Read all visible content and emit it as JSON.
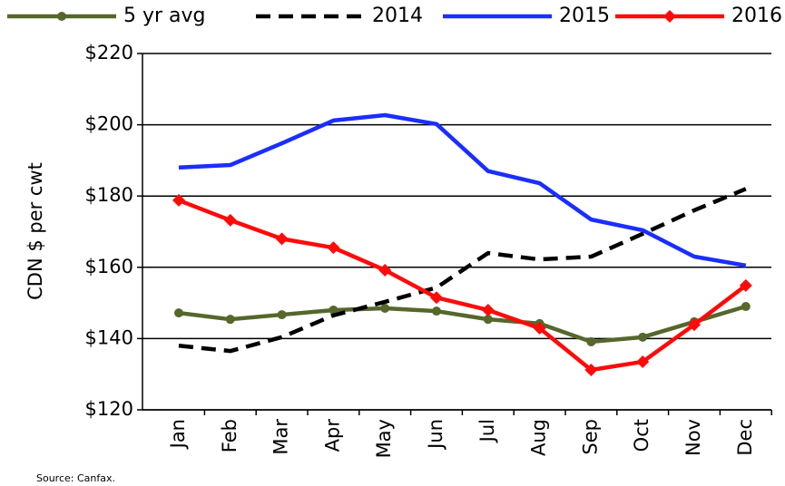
{
  "chart_data": {
    "type": "line",
    "y_label": "CDN $ per cwt",
    "source": "Source: Canfax.",
    "categories": [
      "Jan",
      "Feb",
      "Mar",
      "Apr",
      "May",
      "Jun",
      "Jul",
      "Aug",
      "Sep",
      "Oct",
      "Nov",
      "Dec"
    ],
    "series": [
      {
        "name": "5 yr avg",
        "color": "#55672b",
        "marker": "circle",
        "dash": false,
        "values": [
          147.2,
          145.4,
          146.7,
          148,
          148.5,
          147.7,
          145.4,
          144.2,
          139.1,
          140.4,
          144.7,
          149
        ]
      },
      {
        "name": "2014",
        "color": "#000000",
        "marker": "none",
        "dash": true,
        "values": [
          138,
          136.5,
          140.4,
          146.5,
          150.3,
          154.3,
          164,
          162.2,
          163,
          169.4,
          176,
          182
        ]
      },
      {
        "name": "2015",
        "color": "#1a2eff",
        "marker": "none",
        "dash": false,
        "values": [
          188,
          188.7,
          194.8,
          201.2,
          202.7,
          200.2,
          187,
          183.6,
          173.4,
          170.4,
          163,
          160.5
        ]
      },
      {
        "name": "2016",
        "color": "#ff0a0a",
        "marker": "diamond",
        "dash": false,
        "values": [
          178.8,
          173.2,
          168,
          165.5,
          159.2,
          151.5,
          148,
          142.9,
          131.2,
          133.5,
          143.9,
          154.9
        ]
      }
    ],
    "ylim": [
      120,
      220
    ],
    "yticks": [
      {
        "value": 120,
        "label": "$120"
      },
      {
        "value": 140,
        "label": "$140"
      },
      {
        "value": 160,
        "label": "$160"
      },
      {
        "value": 180,
        "label": "$180"
      },
      {
        "value": 200,
        "label": "$200"
      },
      {
        "value": 220,
        "label": "$220"
      }
    ],
    "grid": true
  }
}
